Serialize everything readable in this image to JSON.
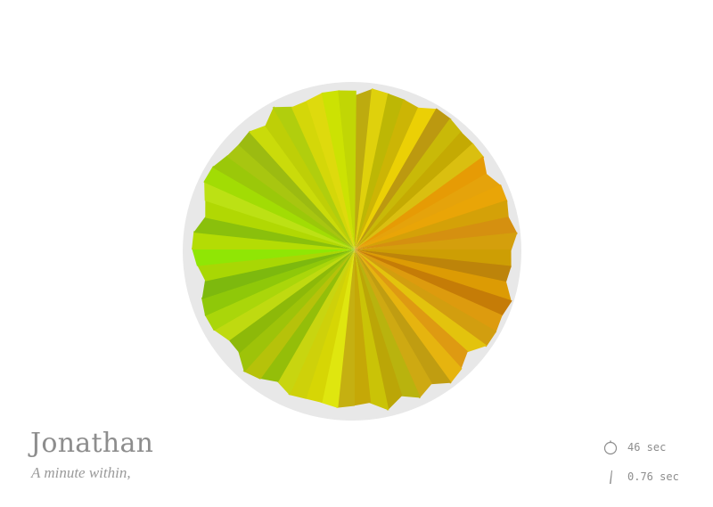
{
  "profile": {
    "name": "Jonathan",
    "subtitle": "A minute within,"
  },
  "stats": {
    "duration": {
      "icon": "stopwatch-icon",
      "value": "46 sec"
    },
    "interval": {
      "icon": "needle-icon",
      "value": "0.76 sec"
    }
  },
  "colors": {
    "ring": "#e8e8e8",
    "text": "#8d8d8d",
    "palette_green": "#6aa81c",
    "palette_yellow": "#c8c800",
    "palette_orange": "#e0a800"
  }
}
